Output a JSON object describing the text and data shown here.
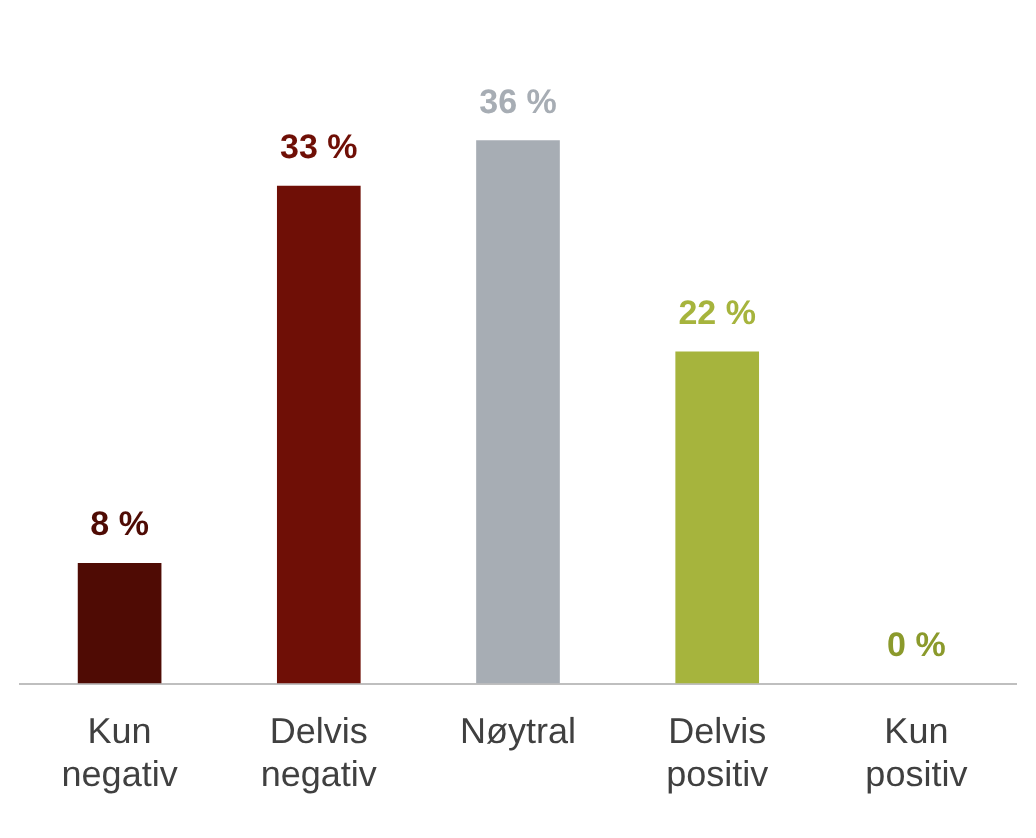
{
  "chart_data": {
    "type": "bar",
    "categories": [
      "Kun negativ",
      "Delvis negativ",
      "Nøytral",
      "Delvis positiv",
      "Kun positiv"
    ],
    "values": [
      8,
      33,
      36,
      22,
      0
    ],
    "colors": [
      "#4f0b04",
      "#6f0f06",
      "#a7adb4",
      "#a6b43d",
      "#8b9a2c"
    ],
    "value_labels": [
      "8 %",
      "33 %",
      "36 %",
      "22 %",
      "0 %"
    ],
    "grid": false,
    "legend": false
  }
}
